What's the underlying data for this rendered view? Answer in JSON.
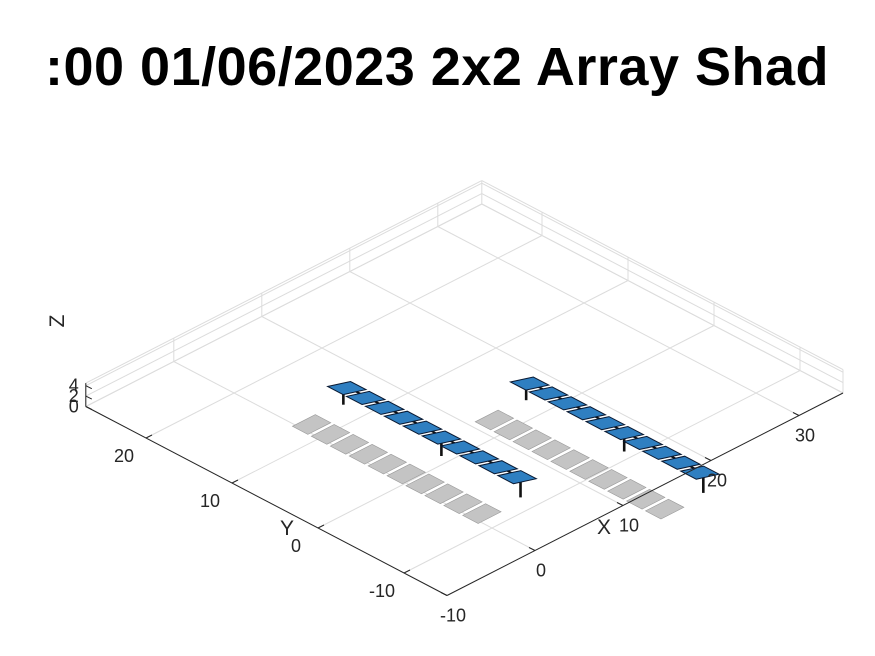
{
  "chart_data": {
    "type": "3d-scene",
    "title": ":00 01/06/2023 2x2 Array Shad",
    "xlabel": "X",
    "ylabel": "Y",
    "zlabel": "Z",
    "x_ticks": [
      "-10",
      "0",
      "10",
      "20",
      "30"
    ],
    "y_ticks": [
      "-10",
      "0",
      "10",
      "20"
    ],
    "z_ticks": [
      "0",
      "2",
      "4"
    ],
    "xlim": [
      -10,
      35
    ],
    "ylim": [
      -15,
      27
    ],
    "zlim": [
      0,
      4.5
    ],
    "grid": true,
    "colors": {
      "panel": "#2f7fc1",
      "panel_edge": "#0a1a33",
      "post": "#111111",
      "shadow": "#c4c4c4",
      "grid": "#dcdcdc",
      "axis": "#262626"
    }
  }
}
